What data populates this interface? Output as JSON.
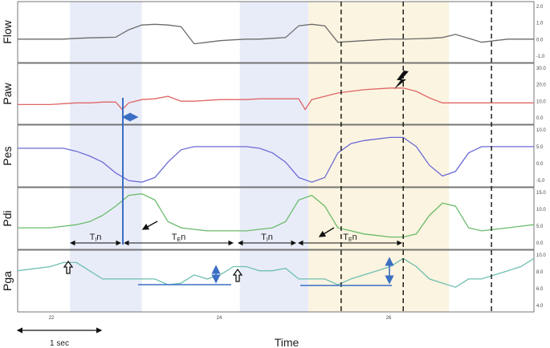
{
  "chart_data": {
    "type": "line",
    "x_axis": {
      "title": "Time",
      "ticks": [
        "22",
        "24",
        "26"
      ],
      "scale_bar_label": "1 sec"
    },
    "channels": [
      {
        "name": "Flow",
        "color": "#6b6b6b",
        "yticks": [
          "2.0",
          "1.0",
          "0.0",
          "-1.0"
        ],
        "ylim": [
          -1.5,
          2.4
        ],
        "x": [
          20.5,
          21.0,
          21.2,
          21.4,
          21.6,
          21.8,
          22.0,
          22.2,
          22.4,
          22.6,
          22.8,
          23.0,
          23.2,
          23.4,
          23.6,
          23.8,
          24.0,
          24.2,
          24.4,
          24.6,
          24.8,
          25.0,
          25.2,
          25.4,
          25.6,
          25.8,
          26.0,
          26.2,
          26.4,
          26.6,
          26.8,
          27.0,
          27.2,
          27.4,
          27.6,
          27.8,
          28.0,
          28.2,
          28.4
        ],
        "y": [
          0.0,
          0.0,
          0.0,
          0.05,
          0.08,
          0.1,
          0.12,
          0.6,
          0.9,
          0.95,
          0.9,
          0.8,
          -0.3,
          -0.2,
          -0.1,
          -0.05,
          0.0,
          0.0,
          0.05,
          0.1,
          0.85,
          0.95,
          0.85,
          -0.2,
          -0.15,
          -0.1,
          -0.05,
          0.0,
          0.0,
          0.02,
          0.05,
          0.1,
          0.3,
          0.05,
          -0.2,
          -0.1,
          0.0,
          0.0,
          0.0
        ]
      },
      {
        "name": "Paw",
        "color": "#e06666",
        "yticks": [
          "30.0",
          "20.0",
          "10.0",
          "0.0"
        ],
        "ylim": [
          -3,
          34
        ],
        "x": [
          20.5,
          21.0,
          21.2,
          21.4,
          21.6,
          21.8,
          22.0,
          22.1,
          22.2,
          22.4,
          22.6,
          22.8,
          23.0,
          23.2,
          23.4,
          23.6,
          23.8,
          24.0,
          24.2,
          24.4,
          24.6,
          24.8,
          24.9,
          25.0,
          25.2,
          25.4,
          25.6,
          25.8,
          26.0,
          26.2,
          26.4,
          26.6,
          26.8,
          27.0,
          27.2,
          27.4,
          27.6,
          27.8,
          28.0,
          28.2,
          28.4
        ],
        "y": [
          9,
          9,
          9.5,
          10,
          10,
          10.5,
          10.5,
          6,
          10,
          12,
          12.5,
          14,
          11,
          11,
          11.5,
          12,
          12,
          12,
          12.5,
          12.5,
          12.5,
          12.5,
          6,
          12,
          14,
          16,
          17,
          18,
          18.5,
          19,
          19,
          17,
          13,
          10,
          10,
          10,
          10,
          10,
          10,
          10,
          10
        ]
      },
      {
        "name": "Pes",
        "color": "#6b6bd6",
        "yticks": [
          "10.0",
          "5.0",
          "0.0",
          "-5.0"
        ],
        "ylim": [
          -8,
          12
        ],
        "x": [
          20.5,
          21.0,
          21.2,
          21.4,
          21.6,
          21.8,
          22.0,
          22.2,
          22.4,
          22.6,
          22.8,
          23.0,
          23.2,
          23.4,
          23.6,
          23.8,
          24.0,
          24.2,
          24.4,
          24.6,
          24.8,
          25.0,
          25.2,
          25.4,
          25.6,
          25.8,
          26.0,
          26.2,
          26.4,
          26.6,
          26.8,
          27.0,
          27.2,
          27.4,
          27.6,
          27.8,
          28.0,
          28.2,
          28.4
        ],
        "y": [
          4.5,
          4.5,
          4.5,
          3.5,
          2.0,
          0.0,
          -3.5,
          -6.0,
          -6.5,
          -5.0,
          0.0,
          4.0,
          5.0,
          5.0,
          5.0,
          5.0,
          5.0,
          4.5,
          3.0,
          0.0,
          -5.0,
          -6.5,
          -5.0,
          3.0,
          6.0,
          7.0,
          7.5,
          8.0,
          8.0,
          5.0,
          -1.0,
          -4.5,
          -3.0,
          3.0,
          5.0,
          5.0,
          5.0,
          5.0,
          5.0
        ]
      },
      {
        "name": "Pdi",
        "color": "#6abb6a",
        "yticks": [
          "15.0",
          "10.0",
          "5.0",
          "0.0"
        ],
        "ylim": [
          -3,
          17
        ],
        "x": [
          20.5,
          21.0,
          21.2,
          21.4,
          21.6,
          21.8,
          22.0,
          22.2,
          22.4,
          22.6,
          22.8,
          23.0,
          23.2,
          23.4,
          23.6,
          23.8,
          24.0,
          24.2,
          24.4,
          24.6,
          24.8,
          25.0,
          25.2,
          25.4,
          25.6,
          25.8,
          26.0,
          26.2,
          26.4,
          26.6,
          26.8,
          27.0,
          27.2,
          27.4,
          27.6,
          27.8,
          28.0,
          28.2,
          28.4
        ],
        "y": [
          4,
          4,
          4.5,
          5,
          6,
          8,
          11,
          14.5,
          15,
          13,
          6,
          4,
          3.5,
          3,
          3,
          3,
          3,
          3.5,
          4,
          6,
          13,
          14.5,
          11,
          4,
          3,
          2,
          1.5,
          1,
          1,
          2,
          8,
          12,
          11,
          4,
          3,
          3.5,
          4,
          4.5,
          5
        ]
      },
      {
        "name": "Pga",
        "color": "#6fbfb0",
        "yticks": [
          "10.0",
          "8.0",
          "6.0",
          "4.0"
        ],
        "ylim": [
          3.5,
          11
        ],
        "x": [
          20.5,
          21.0,
          21.2,
          21.4,
          21.6,
          21.8,
          22.0,
          22.2,
          22.4,
          22.6,
          22.8,
          23.0,
          23.2,
          23.4,
          23.6,
          23.8,
          24.0,
          24.2,
          24.4,
          24.6,
          24.8,
          25.0,
          25.2,
          25.4,
          25.6,
          25.8,
          26.0,
          26.2,
          26.4,
          26.6,
          26.8,
          27.0,
          27.2,
          27.4,
          27.6,
          27.8,
          28.0,
          28.2,
          28.4
        ],
        "y": [
          8.5,
          9,
          9.5,
          9.5,
          8.5,
          7.5,
          7.5,
          7.5,
          7.5,
          7.5,
          6.8,
          7,
          8,
          7.5,
          8,
          9,
          9,
          8.5,
          8.5,
          8.8,
          7.5,
          7.5,
          7.5,
          6.8,
          7.5,
          8,
          8.5,
          9,
          10,
          9,
          7.5,
          7,
          6.5,
          7.5,
          7.5,
          8,
          8.5,
          9,
          10
        ]
      }
    ],
    "shaded_regions": [
      {
        "x0": 21.3,
        "x1": 22.4,
        "color": "#e8ecf8"
      },
      {
        "x0": 23.9,
        "x1": 24.95,
        "color": "#e8ecf8"
      },
      {
        "x0": 24.95,
        "x1": 27.1,
        "color": "#fbf4e0"
      }
    ],
    "dashed_vlines": [
      25.45,
      26.4,
      27.75
    ],
    "phase_labels": [
      {
        "base": "T",
        "sub": "I",
        "tail": "n"
      },
      {
        "base": "T",
        "sub": "E",
        "tail": "n"
      },
      {
        "base": "T",
        "sub": "I",
        "tail": "n"
      },
      {
        "base": "T",
        "sub": "E",
        "tail": "n"
      }
    ]
  }
}
